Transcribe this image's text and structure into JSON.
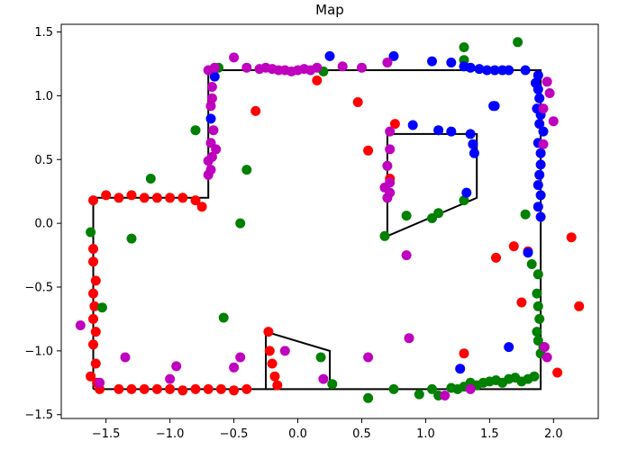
{
  "chart_data": {
    "type": "scatter",
    "title": "Map",
    "xlabel": "",
    "ylabel": "",
    "xlim": [
      -1.85,
      2.35
    ],
    "ylim": [
      -1.53,
      1.56
    ],
    "x_ticks": [
      -1.5,
      -1.0,
      -0.5,
      0.0,
      0.5,
      1.0,
      1.5,
      2.0
    ],
    "x_tick_labels": [
      "−1.5",
      "−1.0",
      "−0.5",
      "0.0",
      "0.5",
      "1.0",
      "1.5",
      "2.0"
    ],
    "y_ticks": [
      -1.5,
      -1.0,
      -0.5,
      0.0,
      0.5,
      1.0,
      1.5
    ],
    "y_tick_labels": [
      "−1.5",
      "−1.0",
      "−0.5",
      "0.0",
      "0.5",
      "1.0",
      "1.5"
    ],
    "grid": false,
    "colors": {
      "red": "#ff0000",
      "green": "#008000",
      "blue": "#0000ff",
      "magenta": "#bf00bf",
      "line": "#000000"
    },
    "walls": [
      [
        [
          -1.6,
          -1.3
        ],
        [
          -1.6,
          0.2
        ],
        [
          -0.7,
          0.2
        ],
        [
          -0.7,
          1.2
        ],
        [
          1.9,
          1.2
        ],
        [
          1.9,
          -1.3
        ],
        [
          -1.6,
          -1.3
        ]
      ],
      [
        [
          0.7,
          -0.1
        ],
        [
          0.7,
          0.7
        ],
        [
          1.4,
          0.7
        ],
        [
          1.4,
          0.2
        ],
        [
          0.7,
          -0.1
        ]
      ],
      [
        [
          -0.25,
          -1.3
        ],
        [
          -0.25,
          -0.85
        ],
        [
          0.25,
          -1.0
        ],
        [
          0.25,
          -1.3
        ]
      ]
    ],
    "series": [
      {
        "color": "red",
        "points": [
          [
            -1.6,
            0.18
          ],
          [
            -1.5,
            0.22
          ],
          [
            -1.4,
            0.2
          ],
          [
            -1.3,
            0.22
          ],
          [
            -1.2,
            0.2
          ],
          [
            -1.1,
            0.2
          ],
          [
            -1.0,
            0.2
          ],
          [
            -0.9,
            0.2
          ],
          [
            -0.8,
            0.18
          ],
          [
            -0.75,
            0.13
          ],
          [
            -1.6,
            -0.2
          ],
          [
            -1.6,
            -0.3
          ],
          [
            -1.58,
            -0.45
          ],
          [
            -1.6,
            -0.55
          ],
          [
            -1.59,
            -0.65
          ],
          [
            -1.6,
            -0.75
          ],
          [
            -1.58,
            -0.85
          ],
          [
            -1.6,
            -0.95
          ],
          [
            -1.58,
            -1.1
          ],
          [
            -1.62,
            -1.2
          ],
          [
            -1.57,
            -1.25
          ],
          [
            -1.55,
            -1.3
          ],
          [
            -1.4,
            -1.3
          ],
          [
            -1.3,
            -1.3
          ],
          [
            -1.2,
            -1.3
          ],
          [
            -1.1,
            -1.3
          ],
          [
            -1.0,
            -1.3
          ],
          [
            -0.9,
            -1.31
          ],
          [
            -0.8,
            -1.3
          ],
          [
            -0.7,
            -1.3
          ],
          [
            -0.6,
            -1.3
          ],
          [
            -0.5,
            -1.31
          ],
          [
            -0.4,
            -1.3
          ],
          [
            -0.23,
            -0.85
          ],
          [
            -0.22,
            -1.0
          ],
          [
            -0.2,
            -1.1
          ],
          [
            -0.18,
            -1.2
          ],
          [
            -0.16,
            -1.27
          ],
          [
            -0.33,
            0.88
          ],
          [
            0.15,
            1.12
          ],
          [
            0.47,
            0.95
          ],
          [
            0.55,
            0.57
          ],
          [
            0.76,
            0.78
          ],
          [
            0.72,
            0.35
          ],
          [
            1.55,
            -0.27
          ],
          [
            1.69,
            -0.18
          ],
          [
            1.8,
            -0.22
          ],
          [
            1.75,
            -0.62
          ],
          [
            1.3,
            -1.02
          ],
          [
            2.03,
            -1.17
          ],
          [
            2.14,
            -0.11
          ],
          [
            2.2,
            -0.65
          ]
        ]
      },
      {
        "color": "green",
        "points": [
          [
            0.2,
            1.19
          ],
          [
            1.3,
            1.38
          ],
          [
            1.3,
            1.28
          ],
          [
            1.72,
            1.42
          ],
          [
            -0.62,
            1.22
          ],
          [
            -0.8,
            0.73
          ],
          [
            -1.15,
            0.35
          ],
          [
            -0.4,
            0.42
          ],
          [
            -0.45,
            0.0
          ],
          [
            -1.3,
            -0.12
          ],
          [
            -1.62,
            -0.07
          ],
          [
            -1.53,
            -0.66
          ],
          [
            -0.58,
            -0.74
          ],
          [
            0.18,
            -1.05
          ],
          [
            0.27,
            -1.26
          ],
          [
            0.55,
            -1.37
          ],
          [
            0.75,
            -1.3
          ],
          [
            0.95,
            -1.34
          ],
          [
            1.05,
            -1.3
          ],
          [
            1.1,
            -1.35
          ],
          [
            1.2,
            -1.29
          ],
          [
            1.25,
            -1.3
          ],
          [
            1.3,
            -1.28
          ],
          [
            1.35,
            -1.25
          ],
          [
            1.4,
            -1.27
          ],
          [
            1.45,
            -1.25
          ],
          [
            1.5,
            -1.24
          ],
          [
            1.55,
            -1.23
          ],
          [
            1.6,
            -1.25
          ],
          [
            1.65,
            -1.22
          ],
          [
            1.7,
            -1.21
          ],
          [
            1.75,
            -1.24
          ],
          [
            1.8,
            -1.22
          ],
          [
            1.85,
            -1.2
          ],
          [
            1.88,
            -0.4
          ],
          [
            1.87,
            -0.55
          ],
          [
            1.88,
            -0.65
          ],
          [
            1.89,
            -0.75
          ],
          [
            1.87,
            -0.85
          ],
          [
            1.88,
            -0.92
          ],
          [
            1.9,
            -1.02
          ],
          [
            1.92,
            -0.97
          ],
          [
            1.78,
            0.07
          ],
          [
            1.83,
            -0.32
          ],
          [
            0.68,
            -0.1
          ],
          [
            0.85,
            0.06
          ],
          [
            1.05,
            0.04
          ],
          [
            1.1,
            0.08
          ],
          [
            1.3,
            0.18
          ]
        ]
      },
      {
        "color": "blue",
        "points": [
          [
            -0.65,
            1.15
          ],
          [
            -0.68,
            0.82
          ],
          [
            0.25,
            1.31
          ],
          [
            0.75,
            1.31
          ],
          [
            1.05,
            1.27
          ],
          [
            1.2,
            1.26
          ],
          [
            1.3,
            1.23
          ],
          [
            1.35,
            1.22
          ],
          [
            1.42,
            1.21
          ],
          [
            1.48,
            1.2
          ],
          [
            1.54,
            1.2
          ],
          [
            1.6,
            1.2
          ],
          [
            1.65,
            1.2
          ],
          [
            1.78,
            1.2
          ],
          [
            1.88,
            1.16
          ],
          [
            1.86,
            1.1
          ],
          [
            1.88,
            1.05
          ],
          [
            1.89,
            0.98
          ],
          [
            1.87,
            0.9
          ],
          [
            1.9,
            0.85
          ],
          [
            1.89,
            0.78
          ],
          [
            1.92,
            0.72
          ],
          [
            1.88,
            0.63
          ],
          [
            1.9,
            0.55
          ],
          [
            1.9,
            0.46
          ],
          [
            1.89,
            0.38
          ],
          [
            1.88,
            0.3
          ],
          [
            1.9,
            0.22
          ],
          [
            1.88,
            0.13
          ],
          [
            1.9,
            0.05
          ],
          [
            1.53,
            0.92
          ],
          [
            1.54,
            0.92
          ],
          [
            0.9,
            0.77
          ],
          [
            1.1,
            0.73
          ],
          [
            1.2,
            0.72
          ],
          [
            1.35,
            0.7
          ],
          [
            1.37,
            0.62
          ],
          [
            1.38,
            0.55
          ],
          [
            1.32,
            0.24
          ],
          [
            1.8,
            -0.23
          ],
          [
            1.65,
            -0.97
          ],
          [
            1.27,
            -1.14
          ]
        ]
      },
      {
        "color": "magenta",
        "points": [
          [
            -0.7,
            1.2
          ],
          [
            -0.65,
            1.22
          ],
          [
            -0.5,
            1.3
          ],
          [
            -0.4,
            1.22
          ],
          [
            -0.3,
            1.21
          ],
          [
            -0.25,
            1.22
          ],
          [
            -0.2,
            1.21
          ],
          [
            -0.15,
            1.2
          ],
          [
            -0.1,
            1.2
          ],
          [
            -0.05,
            1.19
          ],
          [
            0.0,
            1.2
          ],
          [
            0.05,
            1.21
          ],
          [
            0.1,
            1.2
          ],
          [
            0.15,
            1.22
          ],
          [
            0.35,
            1.23
          ],
          [
            0.5,
            1.22
          ],
          [
            0.7,
            1.26
          ],
          [
            -0.67,
            1.07
          ],
          [
            -0.67,
            0.98
          ],
          [
            -0.68,
            0.92
          ],
          [
            -0.66,
            0.73
          ],
          [
            -0.68,
            0.63
          ],
          [
            -0.64,
            0.58
          ],
          [
            -0.67,
            0.52
          ],
          [
            -0.7,
            0.49
          ],
          [
            -0.68,
            0.42
          ],
          [
            -0.7,
            0.38
          ],
          [
            0.72,
            0.72
          ],
          [
            0.72,
            0.58
          ],
          [
            0.7,
            0.45
          ],
          [
            0.72,
            0.32
          ],
          [
            0.68,
            0.28
          ],
          [
            0.7,
            0.2
          ],
          [
            0.72,
            0.24
          ],
          [
            0.85,
            -0.25
          ],
          [
            0.87,
            -0.9
          ],
          [
            1.15,
            -1.35
          ],
          [
            1.35,
            -1.3
          ],
          [
            1.95,
            1.11
          ],
          [
            1.97,
            1.02
          ],
          [
            1.92,
            0.9
          ],
          [
            2.0,
            0.8
          ],
          [
            1.92,
            0.62
          ],
          [
            1.93,
            -0.97
          ],
          [
            1.95,
            -1.05
          ],
          [
            -1.7,
            -0.8
          ],
          [
            -1.55,
            -1.25
          ],
          [
            -1.35,
            -1.05
          ],
          [
            -0.95,
            -1.12
          ],
          [
            -1.0,
            -1.22
          ],
          [
            -0.45,
            -1.05
          ],
          [
            -0.5,
            -1.13
          ],
          [
            -0.1,
            -1.0
          ],
          [
            0.2,
            -1.22
          ],
          [
            0.55,
            -1.05
          ]
        ]
      }
    ]
  }
}
